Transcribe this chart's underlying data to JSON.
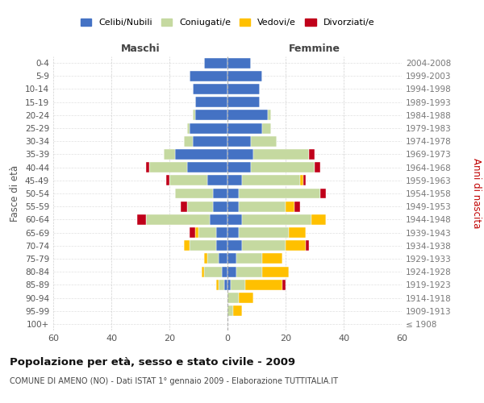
{
  "age_groups": [
    "100+",
    "95-99",
    "90-94",
    "85-89",
    "80-84",
    "75-79",
    "70-74",
    "65-69",
    "60-64",
    "55-59",
    "50-54",
    "45-49",
    "40-44",
    "35-39",
    "30-34",
    "25-29",
    "20-24",
    "15-19",
    "10-14",
    "5-9",
    "0-4"
  ],
  "birth_years": [
    "≤ 1908",
    "1909-1913",
    "1914-1918",
    "1919-1923",
    "1924-1928",
    "1929-1933",
    "1934-1938",
    "1939-1943",
    "1944-1948",
    "1949-1953",
    "1954-1958",
    "1959-1963",
    "1964-1968",
    "1969-1973",
    "1974-1978",
    "1979-1983",
    "1984-1988",
    "1989-1993",
    "1994-1998",
    "1999-2003",
    "2004-2008"
  ],
  "colors": {
    "celibi": "#4472C4",
    "coniugati": "#c5d9a0",
    "vedovi": "#ffc000",
    "divorziati": "#c0001a"
  },
  "maschi": {
    "celibi": [
      0,
      0,
      0,
      1,
      2,
      3,
      4,
      4,
      6,
      5,
      5,
      7,
      14,
      18,
      12,
      13,
      11,
      11,
      12,
      13,
      8
    ],
    "coniugati": [
      0,
      0,
      0,
      2,
      6,
      4,
      9,
      6,
      22,
      9,
      13,
      13,
      13,
      4,
      3,
      1,
      1,
      0,
      0,
      0,
      0
    ],
    "vedovi": [
      0,
      0,
      0,
      1,
      1,
      1,
      2,
      1,
      0,
      0,
      0,
      0,
      0,
      0,
      0,
      0,
      0,
      0,
      0,
      0,
      0
    ],
    "divorziati": [
      0,
      0,
      0,
      0,
      0,
      0,
      0,
      2,
      3,
      2,
      0,
      1,
      1,
      0,
      0,
      0,
      0,
      0,
      0,
      0,
      0
    ]
  },
  "femmine": {
    "celibi": [
      0,
      0,
      0,
      1,
      3,
      3,
      5,
      4,
      5,
      4,
      4,
      5,
      8,
      9,
      8,
      12,
      14,
      11,
      11,
      12,
      8
    ],
    "coniugati": [
      0,
      2,
      4,
      5,
      9,
      9,
      15,
      17,
      24,
      16,
      28,
      20,
      22,
      19,
      9,
      3,
      1,
      0,
      0,
      0,
      0
    ],
    "vedovi": [
      0,
      3,
      5,
      13,
      9,
      7,
      7,
      6,
      5,
      3,
      0,
      1,
      0,
      0,
      0,
      0,
      0,
      0,
      0,
      0,
      0
    ],
    "divorziati": [
      0,
      0,
      0,
      1,
      0,
      0,
      1,
      0,
      0,
      2,
      2,
      1,
      2,
      2,
      0,
      0,
      0,
      0,
      0,
      0,
      0
    ]
  },
  "title": "Popolazione per età, sesso e stato civile - 2009",
  "subtitle": "COMUNE DI AMENO (NO) - Dati ISTAT 1° gennaio 2009 - Elaborazione TUTTITALIA.IT",
  "xlabel_left": "Maschi",
  "xlabel_right": "Femmine",
  "ylabel_left": "Fasce di età",
  "ylabel_right": "Anni di nascita",
  "legend_labels": [
    "Celibi/Nubili",
    "Coniugati/e",
    "Vedovi/e",
    "Divorziati/e"
  ],
  "xlim": 60,
  "background_color": "#ffffff",
  "grid_color": "#cccccc"
}
